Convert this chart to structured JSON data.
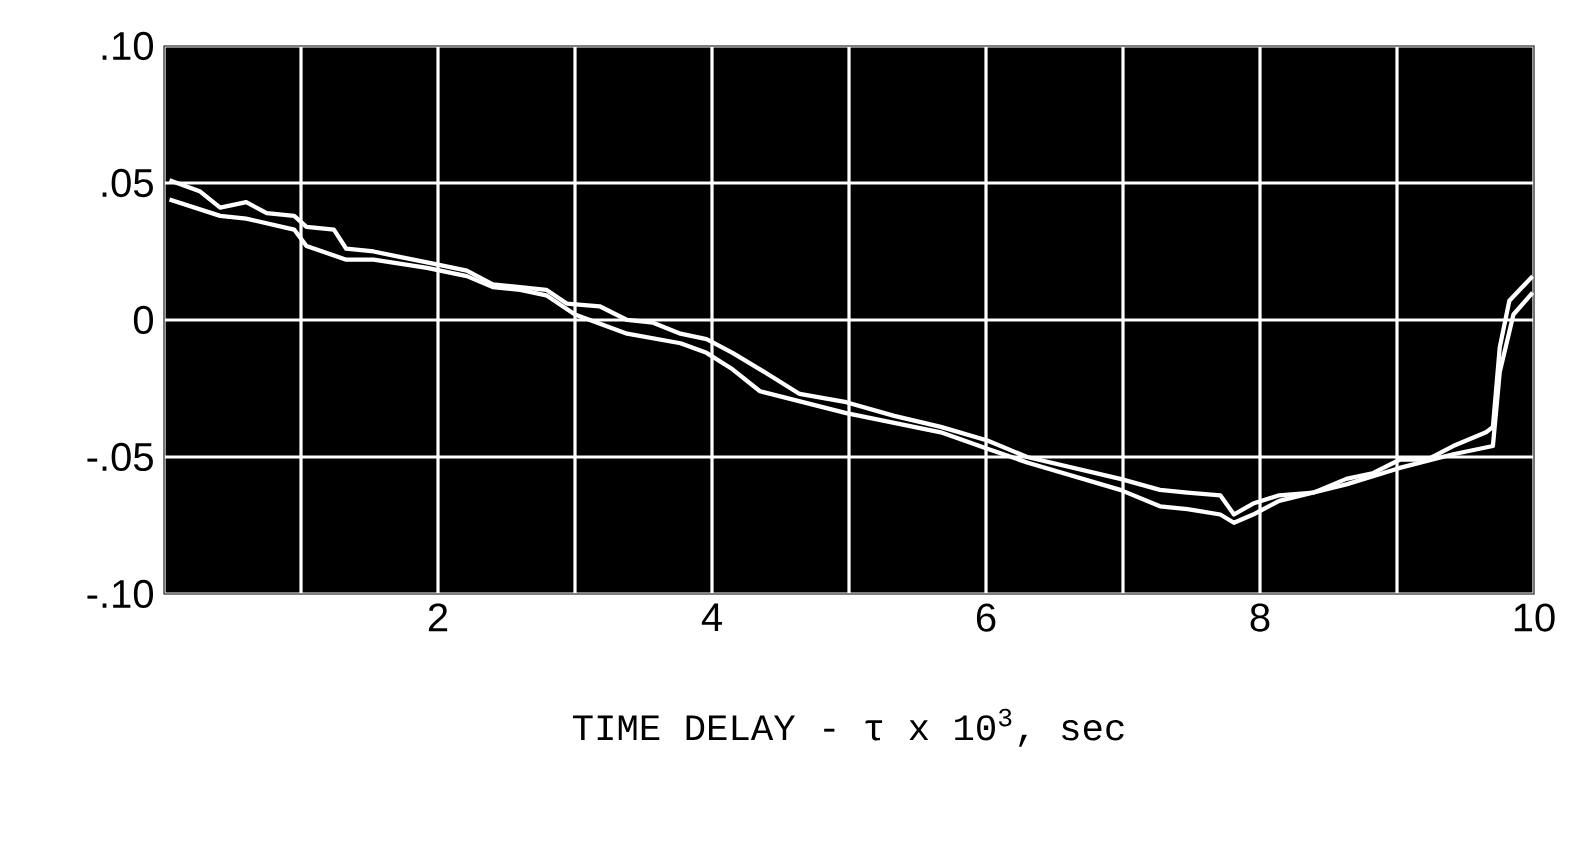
{
  "chart_data": {
    "type": "line",
    "xlabel": "TIME DELAY - τ x 10$^{3}$, sec",
    "xlim": [
      0,
      10
    ],
    "ylim": [
      -0.1,
      0.1
    ],
    "xticks": [
      {
        "value": 0,
        "label": null
      },
      {
        "value": 1,
        "label": null
      },
      2,
      {
        "value": 3,
        "label": null
      },
      4,
      {
        "value": 5,
        "label": null
      },
      6,
      {
        "value": 7,
        "label": null
      },
      8,
      {
        "value": 9,
        "label": null
      },
      10
    ],
    "yticks": [
      {
        "value": -0.1,
        "label": "-.10"
      },
      {
        "value": -0.05,
        "label": "-.05"
      },
      0,
      {
        "value": 0.05,
        "label": ".05"
      },
      {
        "value": 0.1,
        "label": ".10"
      }
    ],
    "grid": true,
    "marker": "none",
    "line_style": "solid",
    "series": [
      {
        "color": "#ffffff",
        "x": [
          0.04,
          0.26,
          0.41,
          0.6,
          0.75,
          0.95,
          1.04,
          1.24,
          1.33,
          1.53,
          1.72,
          1.92,
          2.21,
          2.4,
          2.6,
          2.79,
          2.94,
          3.18,
          3.38,
          3.57,
          3.77,
          3.96,
          4.15,
          4.35,
          4.64,
          4.98,
          5.33,
          5.67,
          6.01,
          6.3,
          6.64,
          6.98,
          7.27,
          7.47,
          7.71,
          7.81,
          7.95,
          8.14,
          8.39,
          8.63,
          8.82,
          9.02,
          9.22,
          9.41,
          9.65,
          9.7,
          9.75,
          9.82,
          9.99
        ],
        "values": [
          0.051,
          0.047,
          0.041,
          0.043,
          0.039,
          0.038,
          0.034,
          0.033,
          0.026,
          0.025,
          0.023,
          0.021,
          0.018,
          0.013,
          0.012,
          0.011,
          0.006,
          0.005,
          0.0,
          -0.001,
          -0.005,
          -0.007,
          -0.012,
          -0.018,
          -0.027,
          -0.03,
          -0.035,
          -0.039,
          -0.044,
          -0.05,
          -0.054,
          -0.058,
          -0.062,
          -0.063,
          -0.064,
          -0.071,
          -0.067,
          -0.064,
          -0.063,
          -0.058,
          -0.056,
          -0.051,
          -0.051,
          -0.046,
          -0.041,
          -0.039,
          -0.01,
          0.007,
          0.016
        ]
      },
      {
        "color": "#ffffff",
        "x": [
          0.04,
          0.41,
          0.6,
          0.95,
          1.04,
          1.33,
          1.53,
          1.92,
          2.21,
          2.4,
          2.6,
          2.79,
          3.0,
          3.38,
          3.77,
          3.96,
          4.15,
          4.35,
          4.98,
          5.67,
          6.01,
          6.3,
          6.64,
          6.98,
          7.27,
          7.47,
          7.71,
          7.81,
          7.95,
          8.14,
          8.63,
          9.02,
          9.41,
          9.7,
          9.75,
          9.85,
          9.99
        ],
        "values": [
          0.044,
          0.038,
          0.037,
          0.033,
          0.027,
          0.022,
          0.022,
          0.019,
          0.016,
          0.012,
          0.011,
          0.009,
          0.002,
          -0.005,
          -0.0085,
          -0.012,
          -0.018,
          -0.026,
          -0.034,
          -0.041,
          -0.047,
          -0.052,
          -0.057,
          -0.062,
          -0.068,
          -0.069,
          -0.071,
          -0.074,
          -0.071,
          -0.066,
          -0.06,
          -0.054,
          -0.049,
          -0.046,
          -0.019,
          0.002,
          0.01
        ]
      }
    ]
  }
}
